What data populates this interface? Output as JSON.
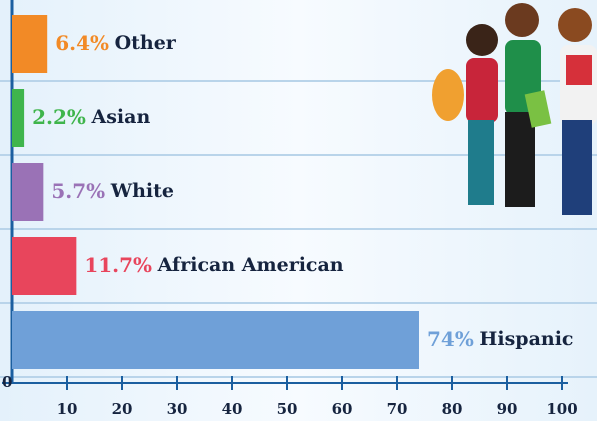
{
  "chart_data": {
    "type": "bar",
    "orientation": "horizontal",
    "categories": [
      "Other",
      "Asian",
      "White",
      "African American",
      "Hispanic"
    ],
    "values": [
      6.4,
      2.2,
      5.7,
      11.7,
      74
    ],
    "value_labels": [
      "6.4%",
      "2.2%",
      "5.7%",
      "11.7%",
      "74%"
    ],
    "colors": [
      "#f28a26",
      "#3fb54c",
      "#9a72b6",
      "#e8455c",
      "#6fa0d8"
    ],
    "xlim": [
      0,
      100
    ],
    "xticks": [
      0,
      10,
      20,
      30,
      40,
      50,
      60,
      70,
      80,
      90,
      100
    ]
  }
}
